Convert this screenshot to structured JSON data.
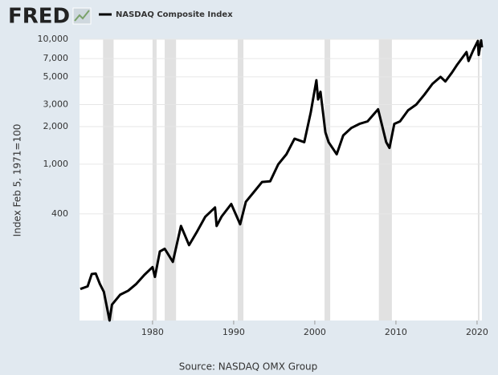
{
  "chart_data": {
    "type": "line",
    "logo": "FRED",
    "legend_title": "NASDAQ Composite Index",
    "y_label": "Index Feb 5, 1971=100",
    "source": "Source: NASDAQ OMX Group",
    "log_y": true,
    "grid": true,
    "x": [
      1971.1,
      1972.0,
      1972.5,
      1973.0,
      1973.5,
      1974.0,
      1974.7,
      1975.0,
      1976.0,
      1977.0,
      1978.0,
      1979.0,
      1980.0,
      1980.3,
      1980.9,
      1981.5,
      1982.5,
      1983.5,
      1984.5,
      1985.5,
      1986.5,
      1987.7,
      1987.9,
      1988.5,
      1989.7,
      1990.8,
      1991.5,
      1992.5,
      1993.5,
      1994.5,
      1995.5,
      1996.5,
      1997.5,
      1998.7,
      1999.5,
      2000.2,
      2000.4,
      2000.7,
      2001.3,
      2001.7,
      2002.7,
      2003.5,
      2004.5,
      2005.5,
      2006.5,
      2007.8,
      2008.8,
      2009.2,
      2009.8,
      2010.5,
      2011.5,
      2012.5,
      2013.5,
      2014.5,
      2015.5,
      2016.1,
      2016.9,
      2017.5,
      2018.7,
      2018.95,
      2019.5,
      2020.1,
      2020.2,
      2020.5,
      2020.6
    ],
    "series": [
      {
        "name": "NASDAQ Composite Index",
        "color": "#000000",
        "values": [
          100,
          105,
          132,
          133,
          110,
          95,
          56,
          75,
          90,
          97,
          110,
          130,
          150,
          125,
          200,
          210,
          165,
          320,
          225,
          290,
          380,
          450,
          320,
          380,
          480,
          330,
          500,
          600,
          720,
          730,
          1000,
          1200,
          1600,
          1500,
          2600,
          4700,
          3300,
          3800,
          1800,
          1500,
          1200,
          1700,
          1950,
          2100,
          2200,
          2750,
          1500,
          1350,
          2100,
          2200,
          2700,
          3000,
          3600,
          4400,
          5000,
          4600,
          5400,
          6200,
          7900,
          6700,
          8100,
          9700,
          7500,
          9800,
          8600
        ]
      }
    ],
    "recessions": [
      [
        1973.9,
        1975.2
      ],
      [
        1980.0,
        1980.5
      ],
      [
        1981.5,
        1982.9
      ],
      [
        1990.5,
        1991.2
      ],
      [
        2001.2,
        2001.9
      ],
      [
        2007.9,
        2009.5
      ],
      [
        2020.1,
        2020.3
      ]
    ],
    "recession_color": "#e1e1e1",
    "xlim": [
      1971.0,
      2020.6
    ],
    "xticks": [
      1980,
      1990,
      2000,
      2010,
      2020
    ],
    "ylim": [
      56,
      10000
    ],
    "yticks": [
      {
        "value": 400,
        "label": "400"
      },
      {
        "value": 1000,
        "label": "1,000"
      },
      {
        "value": 2000,
        "label": "2,000"
      },
      {
        "value": 3000,
        "label": "3,000"
      },
      {
        "value": 5000,
        "label": "5,000"
      },
      {
        "value": 7000,
        "label": "7,000"
      },
      {
        "value": 10000,
        "label": "10,000"
      }
    ]
  }
}
